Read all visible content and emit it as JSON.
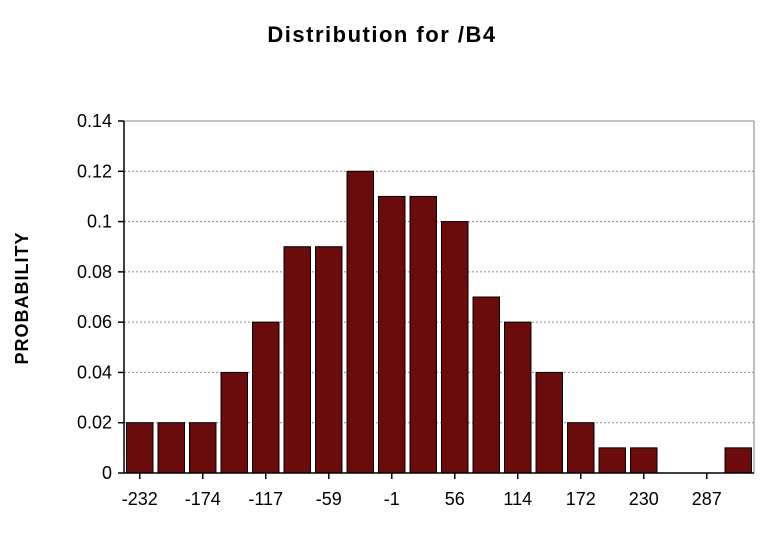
{
  "chart_data": {
    "type": "bar",
    "title": "Distribution for /B4",
    "xlabel": "",
    "ylabel": "PROBABILITY",
    "ylim": [
      0,
      0.14
    ],
    "yticks": [
      "0",
      "0.02",
      "0.04",
      "0.06",
      "0.08",
      "0.1",
      "0.12",
      "0.14"
    ],
    "xtick_labels": [
      "-232",
      "-174",
      "-117",
      "-59",
      "-1",
      "56",
      "114",
      "172",
      "230",
      "287"
    ],
    "values": [
      0.02,
      0.02,
      0.02,
      0.04,
      0.06,
      0.09,
      0.09,
      0.12,
      0.11,
      0.11,
      0.1,
      0.07,
      0.06,
      0.04,
      0.02,
      0.01,
      0.01,
      0,
      0,
      0.01
    ],
    "grid": true,
    "bar_color": "#6b0b0b"
  }
}
